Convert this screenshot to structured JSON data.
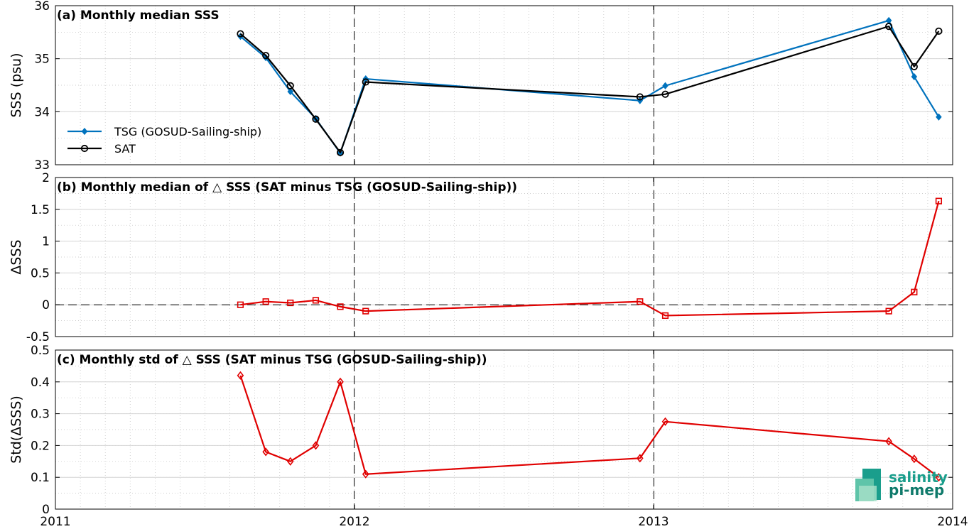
{
  "x_axis": {
    "tick_labels": [
      "2011",
      "2012",
      "2013",
      "2014"
    ],
    "range": [
      "2011-01-01",
      "2014-01-01"
    ],
    "vertical_reference_dates": [
      "2012-01-01",
      "2013-01-01"
    ]
  },
  "logo": {
    "line1": "salinity",
    "line2": "pi-mep",
    "colors": [
      "#1a9e8c",
      "#0f7a6b"
    ]
  },
  "colors": {
    "tsg": "#0072bd",
    "sat": "#000000",
    "delta": "#e00000"
  },
  "chart_data": [
    {
      "type": "line",
      "title": "(a) Monthly median SSS",
      "ylabel": "SSS (psu)",
      "ylim": [
        33,
        36
      ],
      "yticks": [
        "33",
        "34",
        "35",
        "36"
      ],
      "x_dates": [
        "2011-08-15",
        "2011-09-15",
        "2011-10-15",
        "2011-11-15",
        "2011-12-15",
        "2012-01-15",
        "2012-12-15",
        "2013-01-15",
        "2013-10-15",
        "2013-11-15",
        "2013-12-15"
      ],
      "legend_position": "lower-left",
      "series": [
        {
          "name": "TSG (GOSUD-Sailing-ship)",
          "marker": "diamond",
          "color": "#0072bd",
          "values": [
            35.42,
            35.02,
            34.38,
            33.87,
            33.22,
            34.62,
            34.21,
            34.49,
            35.72,
            34.66,
            33.9
          ]
        },
        {
          "name": "SAT",
          "marker": "circle",
          "color": "#000000",
          "values": [
            35.47,
            35.06,
            34.49,
            33.86,
            33.23,
            34.56,
            34.28,
            34.33,
            35.61,
            34.85,
            35.52
          ]
        }
      ]
    },
    {
      "type": "line",
      "title": "(b) Monthly median of △ SSS (SAT minus TSG (GOSUD-Sailing-ship))",
      "ylabel": "ΔSSS",
      "ylim": [
        -0.5,
        2
      ],
      "yticks": [
        "-0.5",
        "0",
        "0.5",
        "1",
        "1.5",
        "2"
      ],
      "zero_line": true,
      "x_dates": [
        "2011-08-15",
        "2011-09-15",
        "2011-10-15",
        "2011-11-15",
        "2011-12-15",
        "2012-01-15",
        "2012-12-15",
        "2013-01-15",
        "2013-10-15",
        "2013-11-15",
        "2013-12-15"
      ],
      "series": [
        {
          "marker": "square",
          "color": "#e00000",
          "values": [
            0.0,
            0.05,
            0.03,
            0.07,
            -0.03,
            -0.1,
            0.05,
            -0.17,
            -0.1,
            0.2,
            1.63
          ]
        }
      ]
    },
    {
      "type": "line",
      "title": "(c) Monthly std of △ SSS (SAT minus TSG (GOSUD-Sailing-ship))",
      "ylabel": "Std(ΔSSS)",
      "ylim": [
        0,
        0.5
      ],
      "yticks": [
        "0",
        "0.1",
        "0.2",
        "0.3",
        "0.4",
        "0.5"
      ],
      "x_dates": [
        "2011-08-15",
        "2011-09-15",
        "2011-10-15",
        "2011-11-15",
        "2011-12-15",
        "2012-01-15",
        "2012-12-15",
        "2013-01-15",
        "2013-10-15",
        "2013-11-15",
        "2013-12-15"
      ],
      "series": [
        {
          "marker": "diamond",
          "color": "#e00000",
          "values": [
            0.42,
            0.18,
            0.15,
            0.2,
            0.4,
            0.11,
            0.16,
            0.275,
            0.213,
            0.158,
            0.1
          ]
        }
      ]
    }
  ]
}
